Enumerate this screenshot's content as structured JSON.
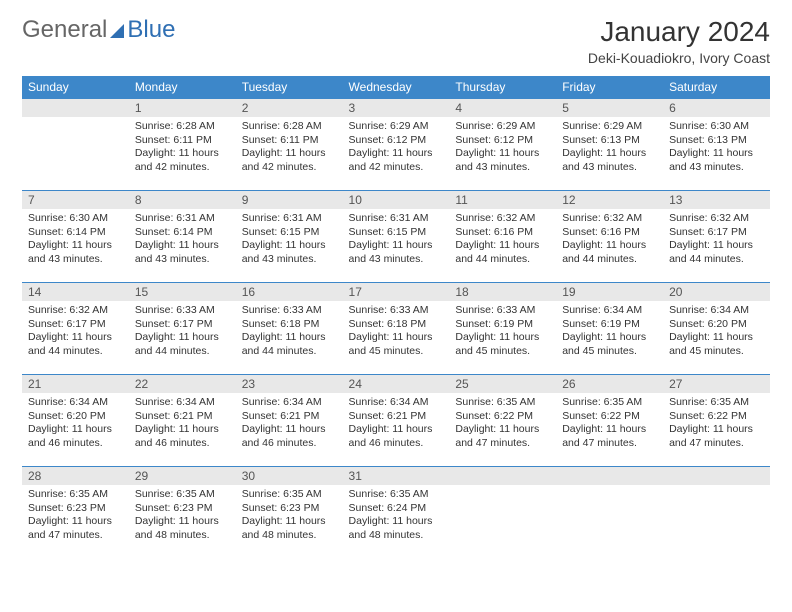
{
  "brand": {
    "general": "General",
    "blue": "Blue"
  },
  "header": {
    "month": "January 2024",
    "location": "Deki-Kouadiokro, Ivory Coast"
  },
  "colors": {
    "accent": "#3d87c9",
    "daynum_bg": "#e8e8e8",
    "text": "#333333"
  },
  "labels": {
    "sunrise": "Sunrise:",
    "sunset": "Sunset:",
    "daylight": "Daylight:"
  },
  "weekdays": [
    "Sunday",
    "Monday",
    "Tuesday",
    "Wednesday",
    "Thursday",
    "Friday",
    "Saturday"
  ],
  "startOffset": 1,
  "days": [
    {
      "n": 1,
      "sunrise": "6:28 AM",
      "sunset": "6:11 PM",
      "daylight": "11 hours and 42 minutes."
    },
    {
      "n": 2,
      "sunrise": "6:28 AM",
      "sunset": "6:11 PM",
      "daylight": "11 hours and 42 minutes."
    },
    {
      "n": 3,
      "sunrise": "6:29 AM",
      "sunset": "6:12 PM",
      "daylight": "11 hours and 42 minutes."
    },
    {
      "n": 4,
      "sunrise": "6:29 AM",
      "sunset": "6:12 PM",
      "daylight": "11 hours and 43 minutes."
    },
    {
      "n": 5,
      "sunrise": "6:29 AM",
      "sunset": "6:13 PM",
      "daylight": "11 hours and 43 minutes."
    },
    {
      "n": 6,
      "sunrise": "6:30 AM",
      "sunset": "6:13 PM",
      "daylight": "11 hours and 43 minutes."
    },
    {
      "n": 7,
      "sunrise": "6:30 AM",
      "sunset": "6:14 PM",
      "daylight": "11 hours and 43 minutes."
    },
    {
      "n": 8,
      "sunrise": "6:31 AM",
      "sunset": "6:14 PM",
      "daylight": "11 hours and 43 minutes."
    },
    {
      "n": 9,
      "sunrise": "6:31 AM",
      "sunset": "6:15 PM",
      "daylight": "11 hours and 43 minutes."
    },
    {
      "n": 10,
      "sunrise": "6:31 AM",
      "sunset": "6:15 PM",
      "daylight": "11 hours and 43 minutes."
    },
    {
      "n": 11,
      "sunrise": "6:32 AM",
      "sunset": "6:16 PM",
      "daylight": "11 hours and 44 minutes."
    },
    {
      "n": 12,
      "sunrise": "6:32 AM",
      "sunset": "6:16 PM",
      "daylight": "11 hours and 44 minutes."
    },
    {
      "n": 13,
      "sunrise": "6:32 AM",
      "sunset": "6:17 PM",
      "daylight": "11 hours and 44 minutes."
    },
    {
      "n": 14,
      "sunrise": "6:32 AM",
      "sunset": "6:17 PM",
      "daylight": "11 hours and 44 minutes."
    },
    {
      "n": 15,
      "sunrise": "6:33 AM",
      "sunset": "6:17 PM",
      "daylight": "11 hours and 44 minutes."
    },
    {
      "n": 16,
      "sunrise": "6:33 AM",
      "sunset": "6:18 PM",
      "daylight": "11 hours and 44 minutes."
    },
    {
      "n": 17,
      "sunrise": "6:33 AM",
      "sunset": "6:18 PM",
      "daylight": "11 hours and 45 minutes."
    },
    {
      "n": 18,
      "sunrise": "6:33 AM",
      "sunset": "6:19 PM",
      "daylight": "11 hours and 45 minutes."
    },
    {
      "n": 19,
      "sunrise": "6:34 AM",
      "sunset": "6:19 PM",
      "daylight": "11 hours and 45 minutes."
    },
    {
      "n": 20,
      "sunrise": "6:34 AM",
      "sunset": "6:20 PM",
      "daylight": "11 hours and 45 minutes."
    },
    {
      "n": 21,
      "sunrise": "6:34 AM",
      "sunset": "6:20 PM",
      "daylight": "11 hours and 46 minutes."
    },
    {
      "n": 22,
      "sunrise": "6:34 AM",
      "sunset": "6:21 PM",
      "daylight": "11 hours and 46 minutes."
    },
    {
      "n": 23,
      "sunrise": "6:34 AM",
      "sunset": "6:21 PM",
      "daylight": "11 hours and 46 minutes."
    },
    {
      "n": 24,
      "sunrise": "6:34 AM",
      "sunset": "6:21 PM",
      "daylight": "11 hours and 46 minutes."
    },
    {
      "n": 25,
      "sunrise": "6:35 AM",
      "sunset": "6:22 PM",
      "daylight": "11 hours and 47 minutes."
    },
    {
      "n": 26,
      "sunrise": "6:35 AM",
      "sunset": "6:22 PM",
      "daylight": "11 hours and 47 minutes."
    },
    {
      "n": 27,
      "sunrise": "6:35 AM",
      "sunset": "6:22 PM",
      "daylight": "11 hours and 47 minutes."
    },
    {
      "n": 28,
      "sunrise": "6:35 AM",
      "sunset": "6:23 PM",
      "daylight": "11 hours and 47 minutes."
    },
    {
      "n": 29,
      "sunrise": "6:35 AM",
      "sunset": "6:23 PM",
      "daylight": "11 hours and 48 minutes."
    },
    {
      "n": 30,
      "sunrise": "6:35 AM",
      "sunset": "6:23 PM",
      "daylight": "11 hours and 48 minutes."
    },
    {
      "n": 31,
      "sunrise": "6:35 AM",
      "sunset": "6:24 PM",
      "daylight": "11 hours and 48 minutes."
    }
  ]
}
